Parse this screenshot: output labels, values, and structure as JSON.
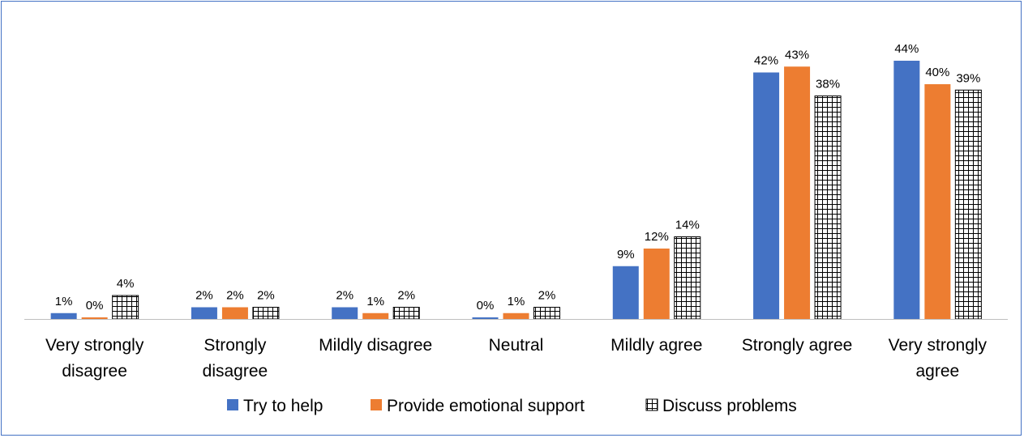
{
  "chart_data": {
    "type": "bar",
    "categories": [
      [
        "Very strongly",
        "disagree"
      ],
      [
        "Strongly",
        "disagree"
      ],
      [
        "Mildly disagree"
      ],
      [
        "Neutral"
      ],
      [
        "Mildly agree"
      ],
      [
        "Strongly agree"
      ],
      [
        "Very strongly",
        "agree"
      ]
    ],
    "series": [
      {
        "name": "Try to help",
        "color": "#4472c4",
        "pattern": "solid",
        "values": [
          1,
          2,
          2,
          0,
          9,
          42,
          44
        ],
        "labels": [
          "1%",
          "2%",
          "2%",
          "0%",
          "9%",
          "42%",
          "44%"
        ]
      },
      {
        "name": "Provide emotional support",
        "color": "#ed7d31",
        "pattern": "solid",
        "values": [
          0,
          2,
          1,
          1,
          12,
          43,
          40
        ],
        "labels": [
          "0%",
          "2%",
          "1%",
          "1%",
          "12%",
          "43%",
          "40%"
        ]
      },
      {
        "name": "Discuss problems",
        "color": "#000000",
        "pattern": "grid",
        "values": [
          4,
          2,
          2,
          2,
          14,
          38,
          39
        ],
        "labels": [
          "4%",
          "2%",
          "2%",
          "2%",
          "14%",
          "38%",
          "39%"
        ]
      }
    ],
    "ylim": [
      0,
      44
    ],
    "grid": false,
    "legend_position": "bottom",
    "title": "",
    "xlabel": "",
    "ylabel": ""
  }
}
